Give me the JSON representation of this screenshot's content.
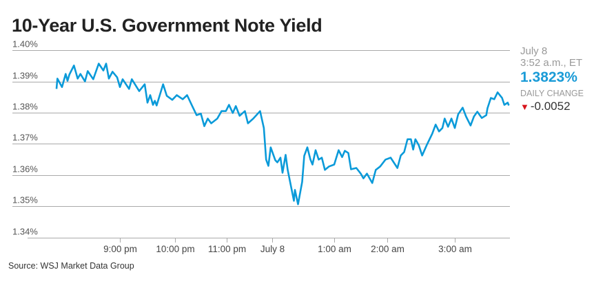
{
  "title": "10-Year U.S. Government Note Yield",
  "source": "Source: WSJ Market Data Group",
  "panel": {
    "date": "July 8",
    "time": "3:52 a.m., ET",
    "value": "1.3823%",
    "change_label": "DAILY CHANGE",
    "change": "-0.0052",
    "change_direction": "down-triangle-icon"
  },
  "colors": {
    "line": "#0a9ad9",
    "value": "#1a9bd7",
    "down": "#d8141b",
    "grid": "#a9a9a9"
  },
  "chart_data": {
    "type": "line",
    "title": "10-Year U.S. Government Note Yield",
    "xlabel": "",
    "ylabel": "",
    "ylim": [
      1.34,
      1.4
    ],
    "y_ticks": [
      1.4,
      1.39,
      1.38,
      1.37,
      1.36,
      1.35,
      1.34
    ],
    "y_tick_labels": [
      "1.40%",
      "1.39%",
      "1.38%",
      "1.37%",
      "1.36%",
      "1.35%",
      "1.34%"
    ],
    "x_tick_labels": [
      "9:00 pm",
      "10:00 pm",
      "11:00 pm",
      "July 8",
      "1:00 am",
      "2:00 am",
      "3:00 am"
    ],
    "grid": true,
    "legend": "none",
    "series": [
      {
        "x": [
          "19:51",
          "19:52",
          "19:57",
          "20:01",
          "20:03",
          "20:05",
          "20:10",
          "20:14",
          "20:17",
          "20:22",
          "20:25",
          "20:31",
          "20:37",
          "20:42",
          "20:45",
          "20:48",
          "20:52",
          "20:57",
          "21:00",
          "21:03",
          "21:10",
          "21:13",
          "21:21",
          "21:27",
          "21:30",
          "21:33",
          "21:36",
          "21:38",
          "21:40",
          "21:47",
          "21:51",
          "21:57",
          "22:02",
          "22:09",
          "22:14",
          "22:20",
          "22:25",
          "22:30",
          "22:34",
          "22:38",
          "22:42",
          "22:49",
          "22:54",
          "22:59",
          "23:03",
          "23:08",
          "23:12",
          "23:17",
          "23:24",
          "23:28",
          "23:35",
          "23:44",
          "23:49",
          "23:52",
          "23:55",
          "23:58",
          "00:03",
          "00:05",
          "00:08",
          "00:10",
          "00:13",
          "00:15",
          "00:21",
          "00:22",
          "00:25",
          "00:29",
          "00:31",
          "00:34",
          "00:37",
          "00:39",
          "00:42",
          "00:45",
          "00:48",
          "00:51",
          "00:55",
          "01:00",
          "01:05",
          "01:09",
          "01:12",
          "01:16",
          "01:19",
          "01:25",
          "01:30",
          "01:33",
          "01:37",
          "01:43",
          "01:47",
          "01:52",
          "01:58",
          "02:03",
          "02:09",
          "02:12",
          "02:15",
          "02:18",
          "02:21",
          "02:23",
          "02:25",
          "02:28",
          "02:31",
          "02:35",
          "02:40",
          "02:43",
          "02:46",
          "02:49",
          "02:51",
          "02:54",
          "02:57",
          "03:00",
          "03:03",
          "03:07",
          "03:10",
          "03:14",
          "03:17",
          "03:20",
          "03:24",
          "03:28",
          "03:29",
          "03:32",
          "03:35",
          "03:38",
          "03:42",
          "03:44",
          "03:47",
          "03:48"
        ],
        "y": [
          1.3876,
          1.3909,
          1.3882,
          1.3924,
          1.3902,
          1.3922,
          1.3951,
          1.3909,
          1.3924,
          1.39,
          1.3933,
          1.3907,
          1.3957,
          1.3935,
          1.3957,
          1.3909,
          1.3931,
          1.3913,
          1.3882,
          1.3907,
          1.3876,
          1.3907,
          1.3869,
          1.3891,
          1.3832,
          1.3856,
          1.3825,
          1.3838,
          1.3823,
          1.3891,
          1.3854,
          1.3841,
          1.3856,
          1.3843,
          1.3856,
          1.3821,
          1.3792,
          1.3797,
          1.3757,
          1.3781,
          1.3766,
          1.3781,
          1.3805,
          1.3805,
          1.3825,
          1.3799,
          1.3821,
          1.379,
          1.3805,
          1.3766,
          1.3781,
          1.3805,
          1.3751,
          1.365,
          1.363,
          1.3689,
          1.3648,
          1.3641,
          1.3656,
          1.3608,
          1.3665,
          1.3617,
          1.3518,
          1.3553,
          1.3507,
          1.3579,
          1.3662,
          1.3689,
          1.365,
          1.3634,
          1.368,
          1.365,
          1.3656,
          1.3617,
          1.3628,
          1.3634,
          1.368,
          1.3658,
          1.3678,
          1.3671,
          1.3619,
          1.3623,
          1.3605,
          1.359,
          1.3605,
          1.3575,
          1.3617,
          1.3628,
          1.365,
          1.3656,
          1.3623,
          1.3663,
          1.3674,
          1.3715,
          1.3715,
          1.3682,
          1.3715,
          1.3696,
          1.3663,
          1.3696,
          1.3733,
          1.3762,
          1.374,
          1.3751,
          1.3781,
          1.3755,
          1.3781,
          1.3751,
          1.3795,
          1.3816,
          1.3788,
          1.3759,
          1.3788,
          1.3803,
          1.3783,
          1.3792,
          1.3814,
          1.3847,
          1.3843,
          1.3865,
          1.3847,
          1.3825,
          1.3832,
          1.3823
        ]
      }
    ]
  }
}
